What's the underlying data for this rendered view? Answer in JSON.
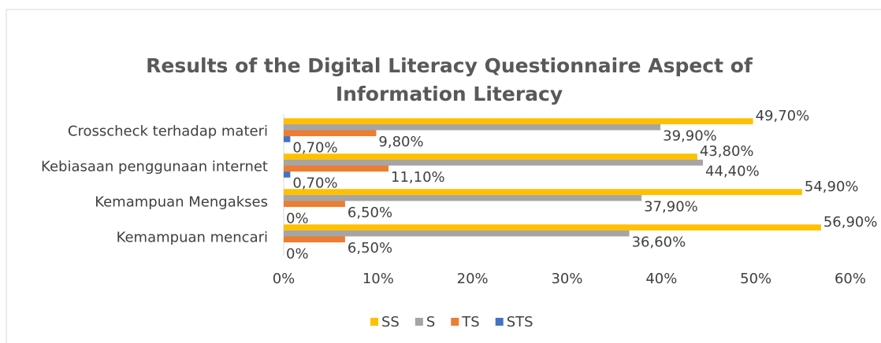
{
  "chart_data": {
    "type": "hbar",
    "title": "Results of the Digital Literacy Questionnaire Aspect of Information Literacy",
    "categories": [
      "Crosscheck terhadap materi",
      "Kebiasaan penggunaan internet",
      "Kemampuan Mengakses",
      "Kemampuan mencari"
    ],
    "series": [
      {
        "name": "SS",
        "color": "#ffc000",
        "values": [
          49.7,
          43.8,
          54.9,
          56.9
        ],
        "value_labels": [
          "49,70%",
          "43,80%",
          "54,90%",
          "56,90%"
        ]
      },
      {
        "name": "S",
        "color": "#a5a5a5",
        "values": [
          39.9,
          44.4,
          37.9,
          36.6
        ],
        "value_labels": [
          "39,90%",
          "44,40%",
          "37,90%",
          "36,60%"
        ]
      },
      {
        "name": "TS",
        "color": "#ed7d31",
        "values": [
          9.8,
          11.1,
          6.5,
          6.5
        ],
        "value_labels": [
          "9,80%",
          "11,10%",
          "6,50%",
          "6,50%"
        ]
      },
      {
        "name": "STS",
        "color": "#4472c4",
        "values": [
          0.7,
          0.7,
          0,
          0
        ],
        "value_labels": [
          "0,70%",
          "0,70%",
          "0%",
          "0%"
        ]
      }
    ],
    "xlim": [
      0,
      60
    ],
    "xticks": [
      {
        "value": 0,
        "label": "0%"
      },
      {
        "value": 10,
        "label": "10%"
      },
      {
        "value": 20,
        "label": "20%"
      },
      {
        "value": 30,
        "label": "30%"
      },
      {
        "value": 40,
        "label": "40%"
      },
      {
        "value": 50,
        "label": "50%"
      },
      {
        "value": 60,
        "label": "60%"
      }
    ],
    "grid": false,
    "legend": "bottom"
  }
}
